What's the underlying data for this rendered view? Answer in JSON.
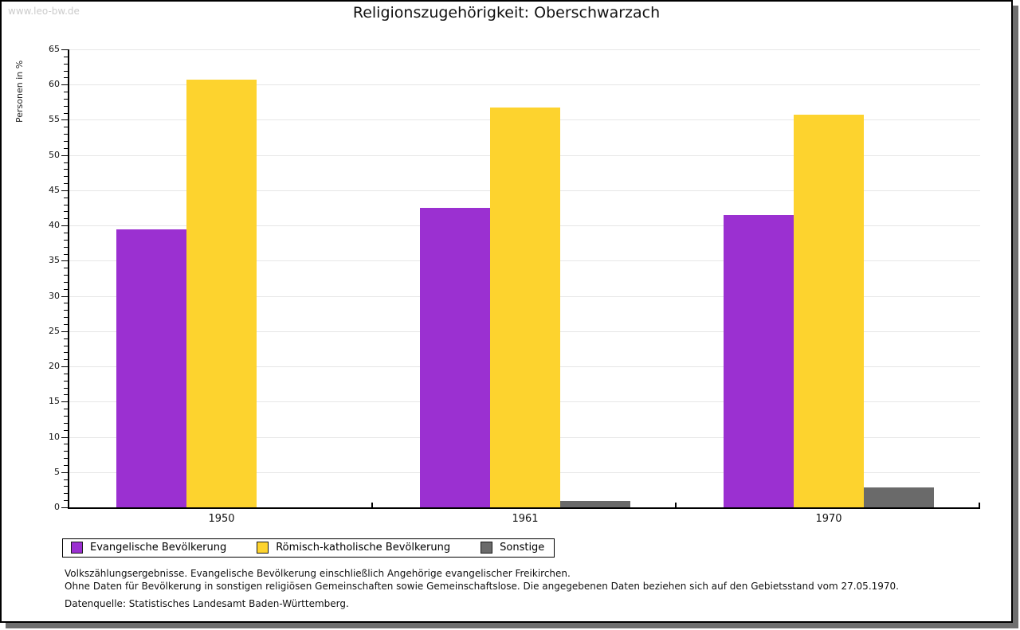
{
  "page": {
    "watermark": "www.leo-bw.de",
    "title": "Religionszugehörigkeit: Oberschwarzach"
  },
  "chart_data": {
    "type": "bar",
    "title": "Religionszugehörigkeit: Oberschwarzach",
    "xlabel": "",
    "ylabel": "Personen in %",
    "ylim": [
      0,
      65
    ],
    "ytick_step": 5,
    "ytick_minor_step": 1,
    "grid": true,
    "legend_position": "bottom",
    "categories": [
      "1950",
      "1961",
      "1970"
    ],
    "series": [
      {
        "key": "evangelische",
        "name": "Evangelische Bevölkerung",
        "color": "#9b30d1",
        "values": [
          39.5,
          42.5,
          41.5
        ]
      },
      {
        "key": "katholische",
        "name": "Römisch-katholische Bevölkerung",
        "color": "#fdd32e",
        "values": [
          60.7,
          56.7,
          55.7
        ]
      },
      {
        "key": "sonstige",
        "name": "Sonstige",
        "color": "#6a6a6a",
        "values": [
          0,
          0.9,
          2.8
        ]
      }
    ]
  },
  "footnotes": {
    "line1": "Volkszählungsergebnisse. Evangelische Bevölkerung einschließlich Angehörige evangelischer Freikirchen.",
    "line2": "Ohne Daten für Bevölkerung in sonstigen religiösen Gemeinschaften sowie Gemeinschaftslose. Die angegebenen Daten beziehen sich auf den Gebietsstand vom 27.05.1970.",
    "source": "Datenquelle: Statistisches Landesamt Baden-Württemberg."
  }
}
